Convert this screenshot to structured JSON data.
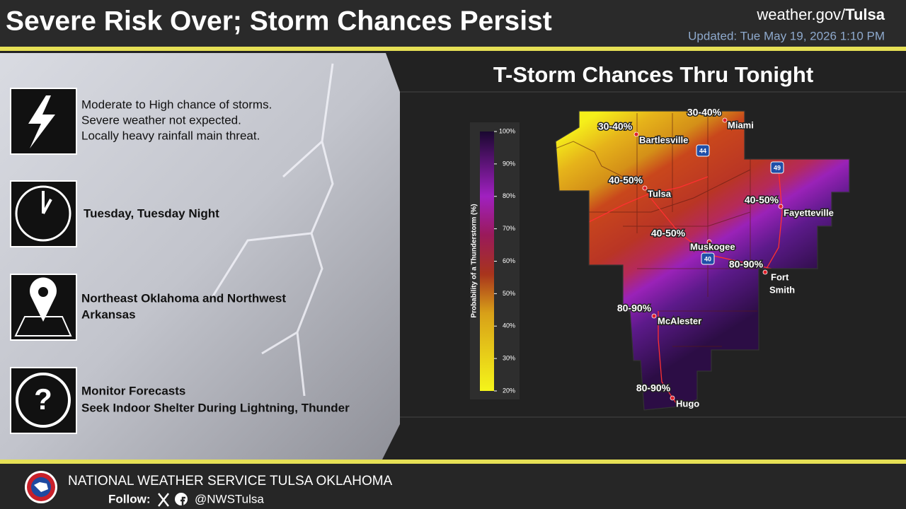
{
  "header": {
    "title": "Severe Risk Over; Storm Chances Persist",
    "site_prefix": "weather.gov/",
    "site_name": "Tulsa",
    "updated": "Updated: Tue May 19, 2026 1:10 PM"
  },
  "items": [
    {
      "lines": [
        "Moderate to High chance of storms.",
        "Severe weather not expected.",
        "Locally heavy rainfall main threat."
      ]
    },
    {
      "lines": [
        "Tuesday, Tuesday Night"
      ]
    },
    {
      "lines": [
        "Northeast Oklahoma and Northwest",
        "Arkansas"
      ]
    },
    {
      "lines": [
        "Monitor Forecasts",
        "Seek Indoor Shelter During Lightning, Thunder"
      ],
      "icon_text": "?"
    }
  ],
  "map": {
    "title": "T-Storm Chances Thru Tonight",
    "legend": {
      "title": "Probability of a Thunderstorm (%)",
      "ticks": [
        {
          "value": 100,
          "label": "100%"
        },
        {
          "value": 90,
          "label": "90%"
        },
        {
          "value": 80,
          "label": "80%"
        },
        {
          "value": 70,
          "label": "70%"
        },
        {
          "value": 60,
          "label": "60%"
        },
        {
          "value": 50,
          "label": "50%"
        },
        {
          "value": 40,
          "label": "40%"
        },
        {
          "value": 30,
          "label": "30%"
        },
        {
          "value": 20,
          "label": "20%"
        }
      ]
    },
    "ranges": [
      "30-40%",
      "30-40%",
      "40-50%",
      "40-50%",
      "40-50%",
      "80-90%",
      "80-90%",
      "80-90%"
    ],
    "cities": [
      "Bartlesville",
      "Miami",
      "Tulsa",
      "Fayetteville",
      "Muskogee",
      [
        "Fort",
        "Smith"
      ],
      "McAlester",
      "Hugo"
    ],
    "highways": [
      "44",
      "49",
      "40"
    ]
  },
  "footer": {
    "office": "NATIONAL WEATHER SERVICE TULSA OKLAHOMA",
    "follow": "Follow:",
    "handle": "@NWSTulsa"
  }
}
